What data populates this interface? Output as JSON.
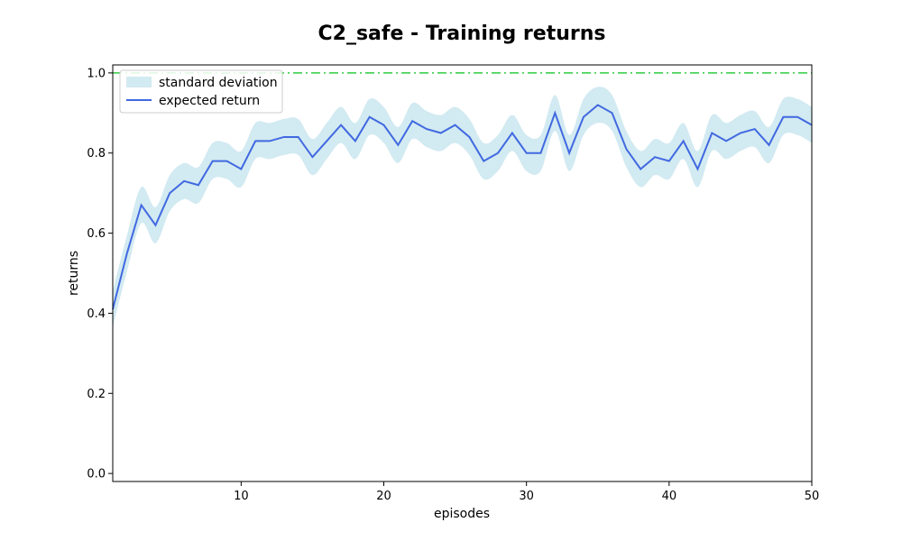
{
  "chart_data": {
    "type": "line",
    "title": "C2_safe - Training returns",
    "xlabel": "episodes",
    "ylabel": "returns",
    "xlim": [
      1,
      50
    ],
    "ylim": [
      -0.02,
      1.02
    ],
    "xticks": [
      10,
      20,
      30,
      40,
      50
    ],
    "yticks": [
      0.0,
      0.2,
      0.4,
      0.6,
      0.8,
      1.0
    ],
    "ytick_labels": [
      "0.0",
      "0.2",
      "0.4",
      "0.6",
      "0.8",
      "1.0"
    ],
    "x": [
      1,
      2,
      3,
      4,
      5,
      6,
      7,
      8,
      9,
      10,
      11,
      12,
      13,
      14,
      15,
      16,
      17,
      18,
      19,
      20,
      21,
      22,
      23,
      24,
      25,
      26,
      27,
      28,
      29,
      30,
      31,
      32,
      33,
      34,
      35,
      36,
      37,
      38,
      39,
      40,
      41,
      42,
      43,
      44,
      45,
      46,
      47,
      48,
      49,
      50
    ],
    "series": [
      {
        "name": "expected return",
        "color": "#4169e1",
        "values": [
          0.41,
          0.55,
          0.67,
          0.62,
          0.7,
          0.73,
          0.72,
          0.78,
          0.78,
          0.76,
          0.83,
          0.83,
          0.84,
          0.84,
          0.79,
          0.83,
          0.87,
          0.83,
          0.89,
          0.87,
          0.82,
          0.88,
          0.86,
          0.85,
          0.87,
          0.84,
          0.78,
          0.8,
          0.85,
          0.8,
          0.8,
          0.9,
          0.8,
          0.89,
          0.92,
          0.9,
          0.81,
          0.76,
          0.79,
          0.78,
          0.83,
          0.76,
          0.85,
          0.83,
          0.85,
          0.86,
          0.82,
          0.89,
          0.89,
          0.87
        ]
      }
    ],
    "band": {
      "name": "standard deviation",
      "color": "#add8e6",
      "std": 0.045
    },
    "reference_line": {
      "y": 1.0,
      "color": "#2ecc40",
      "style": "dashdot"
    },
    "grid": false,
    "legend_position": "upper-left"
  }
}
